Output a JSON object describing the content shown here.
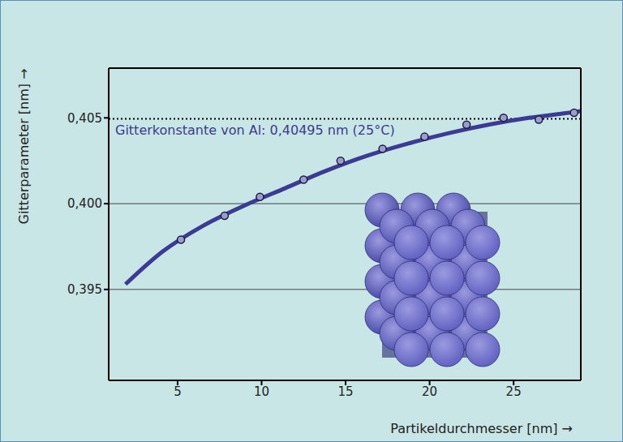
{
  "chart_data": {
    "type": "scatter",
    "x_label": "Partikeldurchmesser [nm] →",
    "y_label": "Gitterparameter [nm] →",
    "xlim": [
      0.9,
      29.0
    ],
    "xticks": [
      5,
      10,
      15,
      20,
      25
    ],
    "ylim": [
      0.3897,
      0.4079
    ],
    "yticks": [
      {
        "value": 0.395,
        "label": "0,395"
      },
      {
        "value": 0.4,
        "label": "0,400"
      },
      {
        "value": 0.405,
        "label": "0,405"
      }
    ],
    "grid": true,
    "series": [
      {
        "type": "line",
        "color": "#3b3b96",
        "line_style": "solid",
        "x": [
          1.9,
          4.1,
          6.5,
          9.0,
          11.4,
          13.8,
          16.3,
          18.7,
          21.1,
          23.5,
          25.9,
          28.3,
          29.0
        ],
        "values": [
          0.3953,
          0.3972,
          0.3987,
          0.3999,
          0.4009,
          0.4019,
          0.4028,
          0.4035,
          0.4041,
          0.4046,
          0.405,
          0.4053,
          0.4054
        ]
      },
      {
        "type": "scatter",
        "color": "#9c9cd4",
        "marker": "circle",
        "x": [
          5.2,
          7.8,
          9.9,
          12.5,
          14.7,
          17.2,
          19.7,
          22.2,
          24.4,
          26.5,
          28.6
        ],
        "values": [
          0.3979,
          0.3993,
          0.4004,
          0.4014,
          0.4025,
          0.4032,
          0.4039,
          0.4046,
          0.405,
          0.4049,
          0.4053
        ]
      }
    ],
    "annotations": [
      {
        "text": "Gitterkonstante von Al: 0,40495 nm (25°C)",
        "y": 0.40495,
        "line_style": "dotted"
      }
    ]
  }
}
